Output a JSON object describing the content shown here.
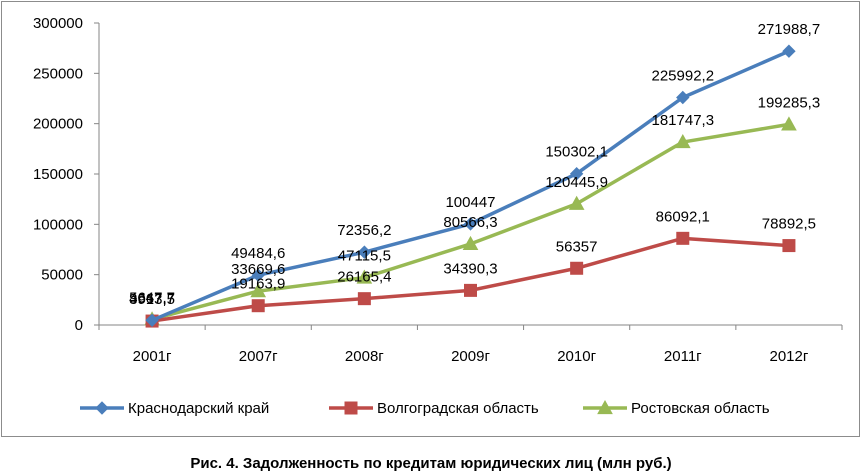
{
  "caption": "Рис. 4. Задолженность по кредитам юридических лиц (млн руб.)",
  "chart_data": {
    "type": "line",
    "categories": [
      "2001г",
      "2007г",
      "2008г",
      "2009г",
      "2010г",
      "2011г",
      "2012г"
    ],
    "ylim": [
      0,
      300000
    ],
    "yticks": [
      0,
      50000,
      100000,
      150000,
      200000,
      250000,
      300000
    ],
    "ytick_labels": [
      "0",
      "50000",
      "100000",
      "150000",
      "200000",
      "250000",
      "300000"
    ],
    "grid": false,
    "legend_position": "bottom",
    "series": [
      {
        "name": "Краснодарский край",
        "color": "#4a7ebb",
        "marker": "diamond",
        "values": [
          4667.7,
          49484.6,
          72356.2,
          100447,
          150302.1,
          225992.2,
          271988.7
        ],
        "labels": [
          "4667,7",
          "49484,6",
          "72356,2",
          "100447",
          "150302,1",
          "225992,2",
          "271988,7"
        ]
      },
      {
        "name": "Волгоградская область",
        "color": "#be4b48",
        "marker": "square",
        "values": [
          3913.5,
          19163.9,
          26165.4,
          34390.3,
          56357,
          86092.1,
          78892.5
        ],
        "labels": [
          "3913,5",
          "19163,9",
          "26165,4",
          "34390,3",
          "56357",
          "86092,1",
          "78892,5"
        ]
      },
      {
        "name": "Ростовская область",
        "color": "#98b954",
        "marker": "triangle",
        "values": [
          5647.7,
          33669.6,
          47115.5,
          80566.3,
          120445.9,
          181747.3,
          199285.3
        ],
        "labels": [
          "5647,7",
          "33669,6",
          "47115,5",
          "80566,3",
          "120445,9",
          "181747,3",
          "199285,3"
        ]
      }
    ]
  }
}
